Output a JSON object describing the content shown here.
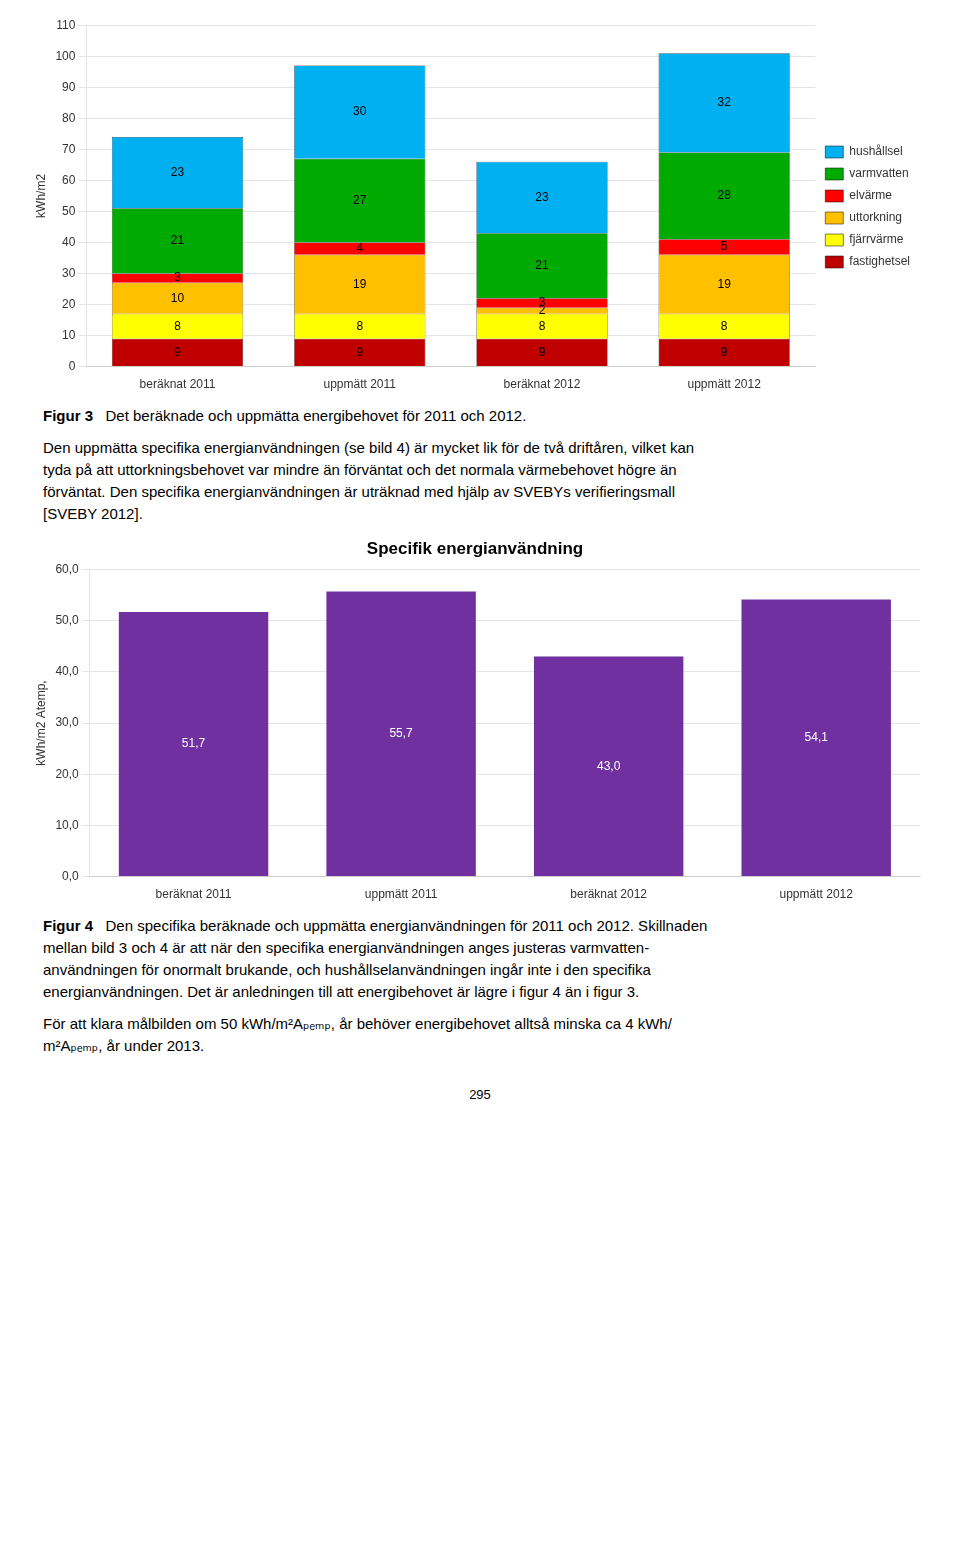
{
  "chart_data": [
    {
      "type": "bar",
      "stacked": true,
      "ylabel": "kWh/m2",
      "categories": [
        "beräknat 2011",
        "uppmätt 2011",
        "beräknat 2012",
        "uppmätt 2012"
      ],
      "series": [
        {
          "name": "fastighetsel",
          "color": "#C00000",
          "values": [
            9,
            9,
            9,
            9
          ]
        },
        {
          "name": "fjärrvärme",
          "color": "#FFFF00",
          "values": [
            8,
            8,
            8,
            8
          ]
        },
        {
          "name": "uttorkning",
          "color": "#FFC000",
          "values": [
            10,
            19,
            2,
            19
          ]
        },
        {
          "name": "elvärme",
          "color": "#FF0000",
          "values": [
            3,
            4,
            3,
            5
          ]
        },
        {
          "name": "varmvatten",
          "color": "#00AA00",
          "values": [
            21,
            27,
            21,
            28
          ]
        },
        {
          "name": "hushållsel",
          "color": "#00B0F0",
          "values": [
            23,
            30,
            23,
            32
          ]
        }
      ],
      "ylim": [
        0,
        110
      ],
      "yticks": [
        0,
        10,
        20,
        30,
        40,
        50,
        60,
        70,
        80,
        90,
        100,
        110
      ],
      "grid": true,
      "legend": "right",
      "data_labels": true,
      "annotations": [
        "Figur 3",
        "   Det beräknade och uppmätta energibehovet för 2011 och 2012.",
        "Den uppmätta specifika energianvändningen (se bild 4) är mycket lik för de två driftåren, vilket kan",
        "tyda på att uttorkningsbehovet var mindre än förväntat och det normala värmebehovet högre än",
        "förväntat. Den specifika energianvändningen är uträknad med hjälp av SVEBYs verifieringsmall",
        "[SVEBY 2012]."
      ]
    },
    {
      "type": "bar",
      "title": "Specifik energianvändning",
      "ylabel": "kWh/m2 Atemp,",
      "categories": [
        "beräknat 2011",
        "uppmätt 2011",
        "beräknat 2012",
        "uppmätt 2012"
      ],
      "values": [
        51.7,
        55.7,
        43.0,
        54.1
      ],
      "value_labels": [
        "51,7",
        "55,7",
        "43,0",
        "54,1"
      ],
      "color": "#7030A0",
      "ylim": [
        0,
        60
      ],
      "yticks": [
        {
          "value": 0.0,
          "label": "0,0"
        },
        {
          "value": 10.0,
          "label": "10,0"
        },
        {
          "value": 20.0,
          "label": "20,0"
        },
        {
          "value": 30.0,
          "label": "30,0"
        },
        {
          "value": 40.0,
          "label": "40,0"
        },
        {
          "value": 50.0,
          "label": "50,0"
        },
        {
          "value": 60.0,
          "label": "60,0"
        }
      ],
      "grid": true,
      "data_labels": true,
      "annotations": [
        "Figur 4",
        "   Den specifika beräknade och uppmätta energianvändningen för 2011 och 2012. Skillnaden",
        "mellan bild 3 och 4 är att när den specifika energianvändningen anges justeras varmvatten-",
        "användningen för onormalt brukande, och hushållselanvändningen ingår inte i den specifika",
        "energianvändningen. Det är anledningen till att energibehovet är lägre i figur 4 än i figur 3.",
        "För att klara målbilden om 50 kWh/m²Aₚₑₘₚ, år behöver energibehovet alltså minska ca 4 kWh/",
        "m²Aₚₑₘₚ, år under 2013.",
        "295"
      ]
    }
  ]
}
